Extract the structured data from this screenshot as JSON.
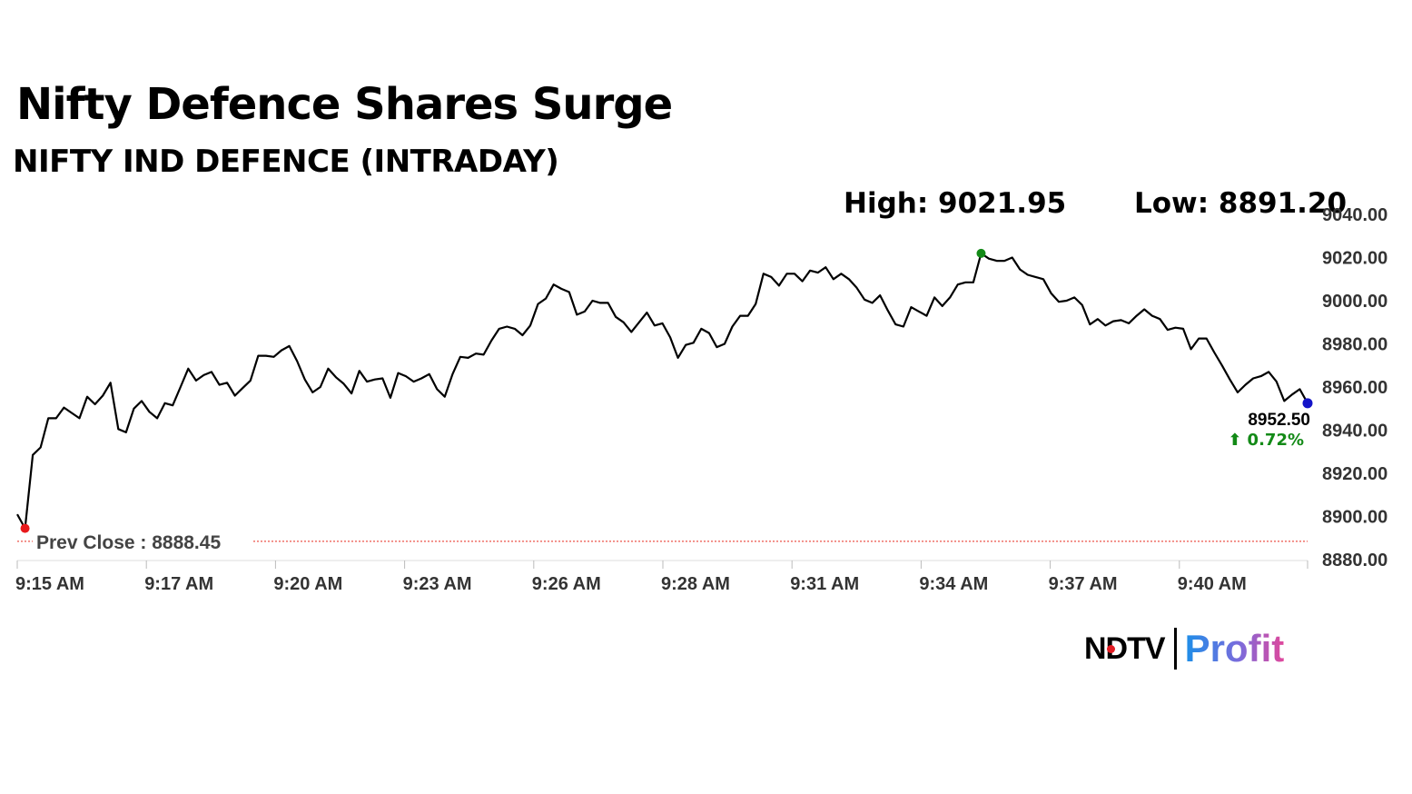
{
  "header": {
    "title": "Nifty Defence Shares Surge",
    "subtitle": "NIFTY IND DEFENCE (INTRADAY)",
    "high_label": "High: 9021.95",
    "low_label": "Low: 8891.20"
  },
  "branding": {
    "ndtv": "NDTV",
    "profit": "Profit"
  },
  "chart_data": {
    "type": "line",
    "title": "NIFTY IND DEFENCE (INTRADAY)",
    "ylim": [
      8880,
      9040
    ],
    "y_ticks": [
      9040,
      9020,
      9000,
      8980,
      8960,
      8940,
      8920,
      8900,
      8880
    ],
    "y_tick_labels": [
      "9040.00",
      "9020.00",
      "9000.00",
      "8980.00",
      "8960.00",
      "8940.00",
      "8920.00",
      "8900.00",
      "8880.00"
    ],
    "x_tick_labels": [
      "9:15 AM",
      "9:17 AM",
      "9:20 AM",
      "9:23 AM",
      "9:26 AM",
      "9:28 AM",
      "9:31 AM",
      "9:34 AM",
      "9:37 AM",
      "9:40 AM"
    ],
    "prev_close": 8888.45,
    "prev_close_label": "Prev Close : 8888.45",
    "last_value_label": "8952.50",
    "change_label": "⬆ 0.72%",
    "grid": false,
    "colors": {
      "line": "#000000",
      "prev_close": "#e8291c",
      "high_marker": "#138a17",
      "low_marker": "#e8191c",
      "last_marker": "#1414c8",
      "change": "#138a17"
    },
    "series": [
      {
        "values": [
          8901.0,
          8894.5,
          8928.5,
          8932.0,
          8945.5,
          8945.5,
          8950.5,
          8948.0,
          8945.5,
          8955.5,
          8952.0,
          8956.0,
          8962.0,
          8940.5,
          8939.0,
          8950.0,
          8953.5,
          8948.5,
          8945.5,
          8952.5,
          8951.5,
          8960.0,
          8968.5,
          8963.0,
          8965.5,
          8967.0,
          8961.0,
          8962.0,
          8956.0,
          8959.5,
          8963.0,
          8974.5,
          8974.5,
          8974.0,
          8977.0,
          8979.0,
          8972.0,
          8963.5,
          8957.5,
          8960.0,
          8968.5,
          8964.5,
          8961.5,
          8957.0,
          8967.5,
          8962.5,
          8963.5,
          8964.0,
          8955.0,
          8966.5,
          8965.0,
          8962.5,
          8964.0,
          8966.0,
          8959.0,
          8955.5,
          8966.0,
          8974.0,
          8973.5,
          8975.5,
          8975.0,
          8981.5,
          8987.0,
          8988.0,
          8987.0,
          8984.0,
          8988.5,
          8998.5,
          9001.0,
          9007.5,
          9005.5,
          9004.0,
          8993.5,
          8995.0,
          9000.0,
          8999.0,
          8999.0,
          8992.5,
          8990.0,
          8985.5,
          8990.0,
          8994.5,
          8988.5,
          8989.5,
          8983.0,
          8973.5,
          8979.5,
          8980.5,
          8987.0,
          8985.0,
          8978.5,
          8980.0,
          8988.0,
          8993.0,
          8993.0,
          8998.5,
          9012.5,
          9011.0,
          9007.0,
          9012.5,
          9012.5,
          9009.0,
          9014.0,
          9013.0,
          9015.5,
          9010.0,
          9012.5,
          9010.0,
          9006.0,
          9000.5,
          8999.0,
          9002.5,
          8995.5,
          8989.0,
          8988.0,
          8997.0,
          8995.0,
          8993.0,
          9001.5,
          8997.5,
          9001.5,
          9007.5,
          9008.5,
          9008.5,
          9021.95,
          9019.5,
          9018.5,
          9018.5,
          9020.0,
          9014.5,
          9012.0,
          9011.0,
          9010.0,
          9003.5,
          8999.5,
          9000.0,
          9001.5,
          8998.0,
          8989.0,
          8991.5,
          8988.5,
          8990.5,
          8991.0,
          8989.5,
          8993.0,
          8996.0,
          8993.0,
          8991.5,
          8986.5,
          8987.5,
          8987.0,
          8977.5,
          8982.5,
          8982.5,
          8976.0,
          8970.0,
          8963.5,
          8957.5,
          8961.0,
          8964.0,
          8965.0,
          8967.0,
          8962.5,
          8953.5,
          8956.5,
          8959.0,
          8952.5
        ]
      }
    ]
  }
}
